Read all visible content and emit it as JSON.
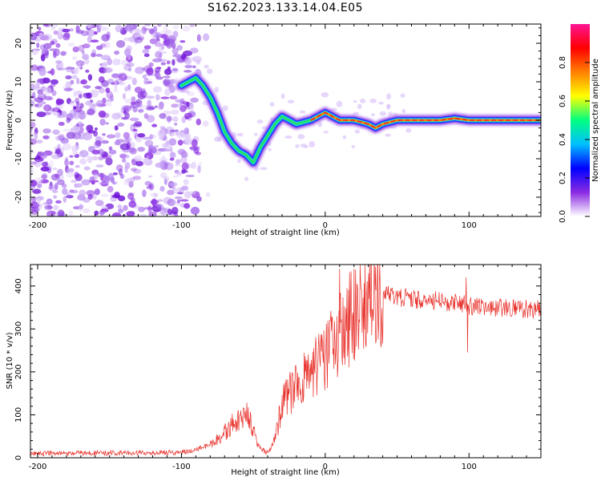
{
  "title": "S162.2023.133.14.04.E05",
  "colors": {
    "snr_line": "#e8302a",
    "track_core": "#ff2020",
    "noise": "#8a2be2",
    "axis": "#000000"
  },
  "chart_data": [
    {
      "type": "heatmap",
      "title": "S162.2023.133.14.04.E05",
      "xlabel": "Height of straight line (km)",
      "ylabel": "Frequency (Hz)",
      "xlim": [
        -205,
        150
      ],
      "ylim": [
        -25,
        25
      ],
      "xticks": [
        -200,
        -100,
        0,
        100
      ],
      "yticks": [
        -20,
        -10,
        0,
        10,
        20
      ],
      "colorbar": {
        "label": "Normalized spectral amplitude",
        "range": [
          0,
          1
        ],
        "ticks": [
          "0.0",
          "0.2",
          "0.4",
          "0.6",
          "0.8"
        ],
        "colormap": [
          "#ffffff",
          "#8a2be2",
          "#0000ff",
          "#00bfff",
          "#00ff80",
          "#ffff00",
          "#ff8000",
          "#ff0000",
          "#ff1493"
        ]
      },
      "noise_region": {
        "x_from": -205,
        "x_to": -100,
        "freq_range": [
          -25,
          25
        ]
      },
      "track": {
        "x": [
          -100,
          -95,
          -90,
          -85,
          -80,
          -75,
          -70,
          -65,
          -60,
          -55,
          -50,
          -45,
          -40,
          -35,
          -30,
          -25,
          -20,
          -10,
          0,
          10,
          20,
          30,
          35,
          40,
          50,
          60,
          80,
          90,
          100,
          120,
          150
        ],
        "y": [
          9,
          10,
          11,
          9,
          6,
          2,
          -3,
          -6,
          -8,
          -9,
          -11,
          -7,
          -4,
          -1,
          1,
          0,
          -1,
          0,
          2,
          0,
          0,
          -1,
          -2,
          -1,
          0,
          0,
          0,
          0.5,
          0,
          0,
          0
        ]
      }
    },
    {
      "type": "line",
      "xlabel": "Height of straight line (km)",
      "ylabel": "SNR (10 * v/v)",
      "xlim": [
        -205,
        150
      ],
      "ylim": [
        0,
        450
      ],
      "xticks": [
        -200,
        -100,
        0,
        100
      ],
      "yticks": [
        0,
        100,
        200,
        300,
        400
      ],
      "envelope": {
        "x": [
          -205,
          -100,
          -90,
          -80,
          -70,
          -60,
          -55,
          -50,
          -45,
          -40,
          -35,
          -30,
          -25,
          -20,
          -10,
          0,
          10,
          20,
          30,
          35,
          40,
          50,
          60,
          80,
          90,
          100,
          120,
          150
        ],
        "y": [
          10,
          12,
          20,
          30,
          60,
          90,
          110,
          60,
          20,
          12,
          40,
          130,
          150,
          170,
          200,
          230,
          290,
          340,
          380,
          390,
          385,
          375,
          370,
          365,
          360,
          355,
          350,
          345
        ]
      },
      "spikes": [
        {
          "x": 10,
          "y": 440
        },
        {
          "x": 35,
          "y": 445
        },
        {
          "x": 98,
          "y": 420
        },
        {
          "x": 99,
          "y": 245
        }
      ]
    }
  ]
}
